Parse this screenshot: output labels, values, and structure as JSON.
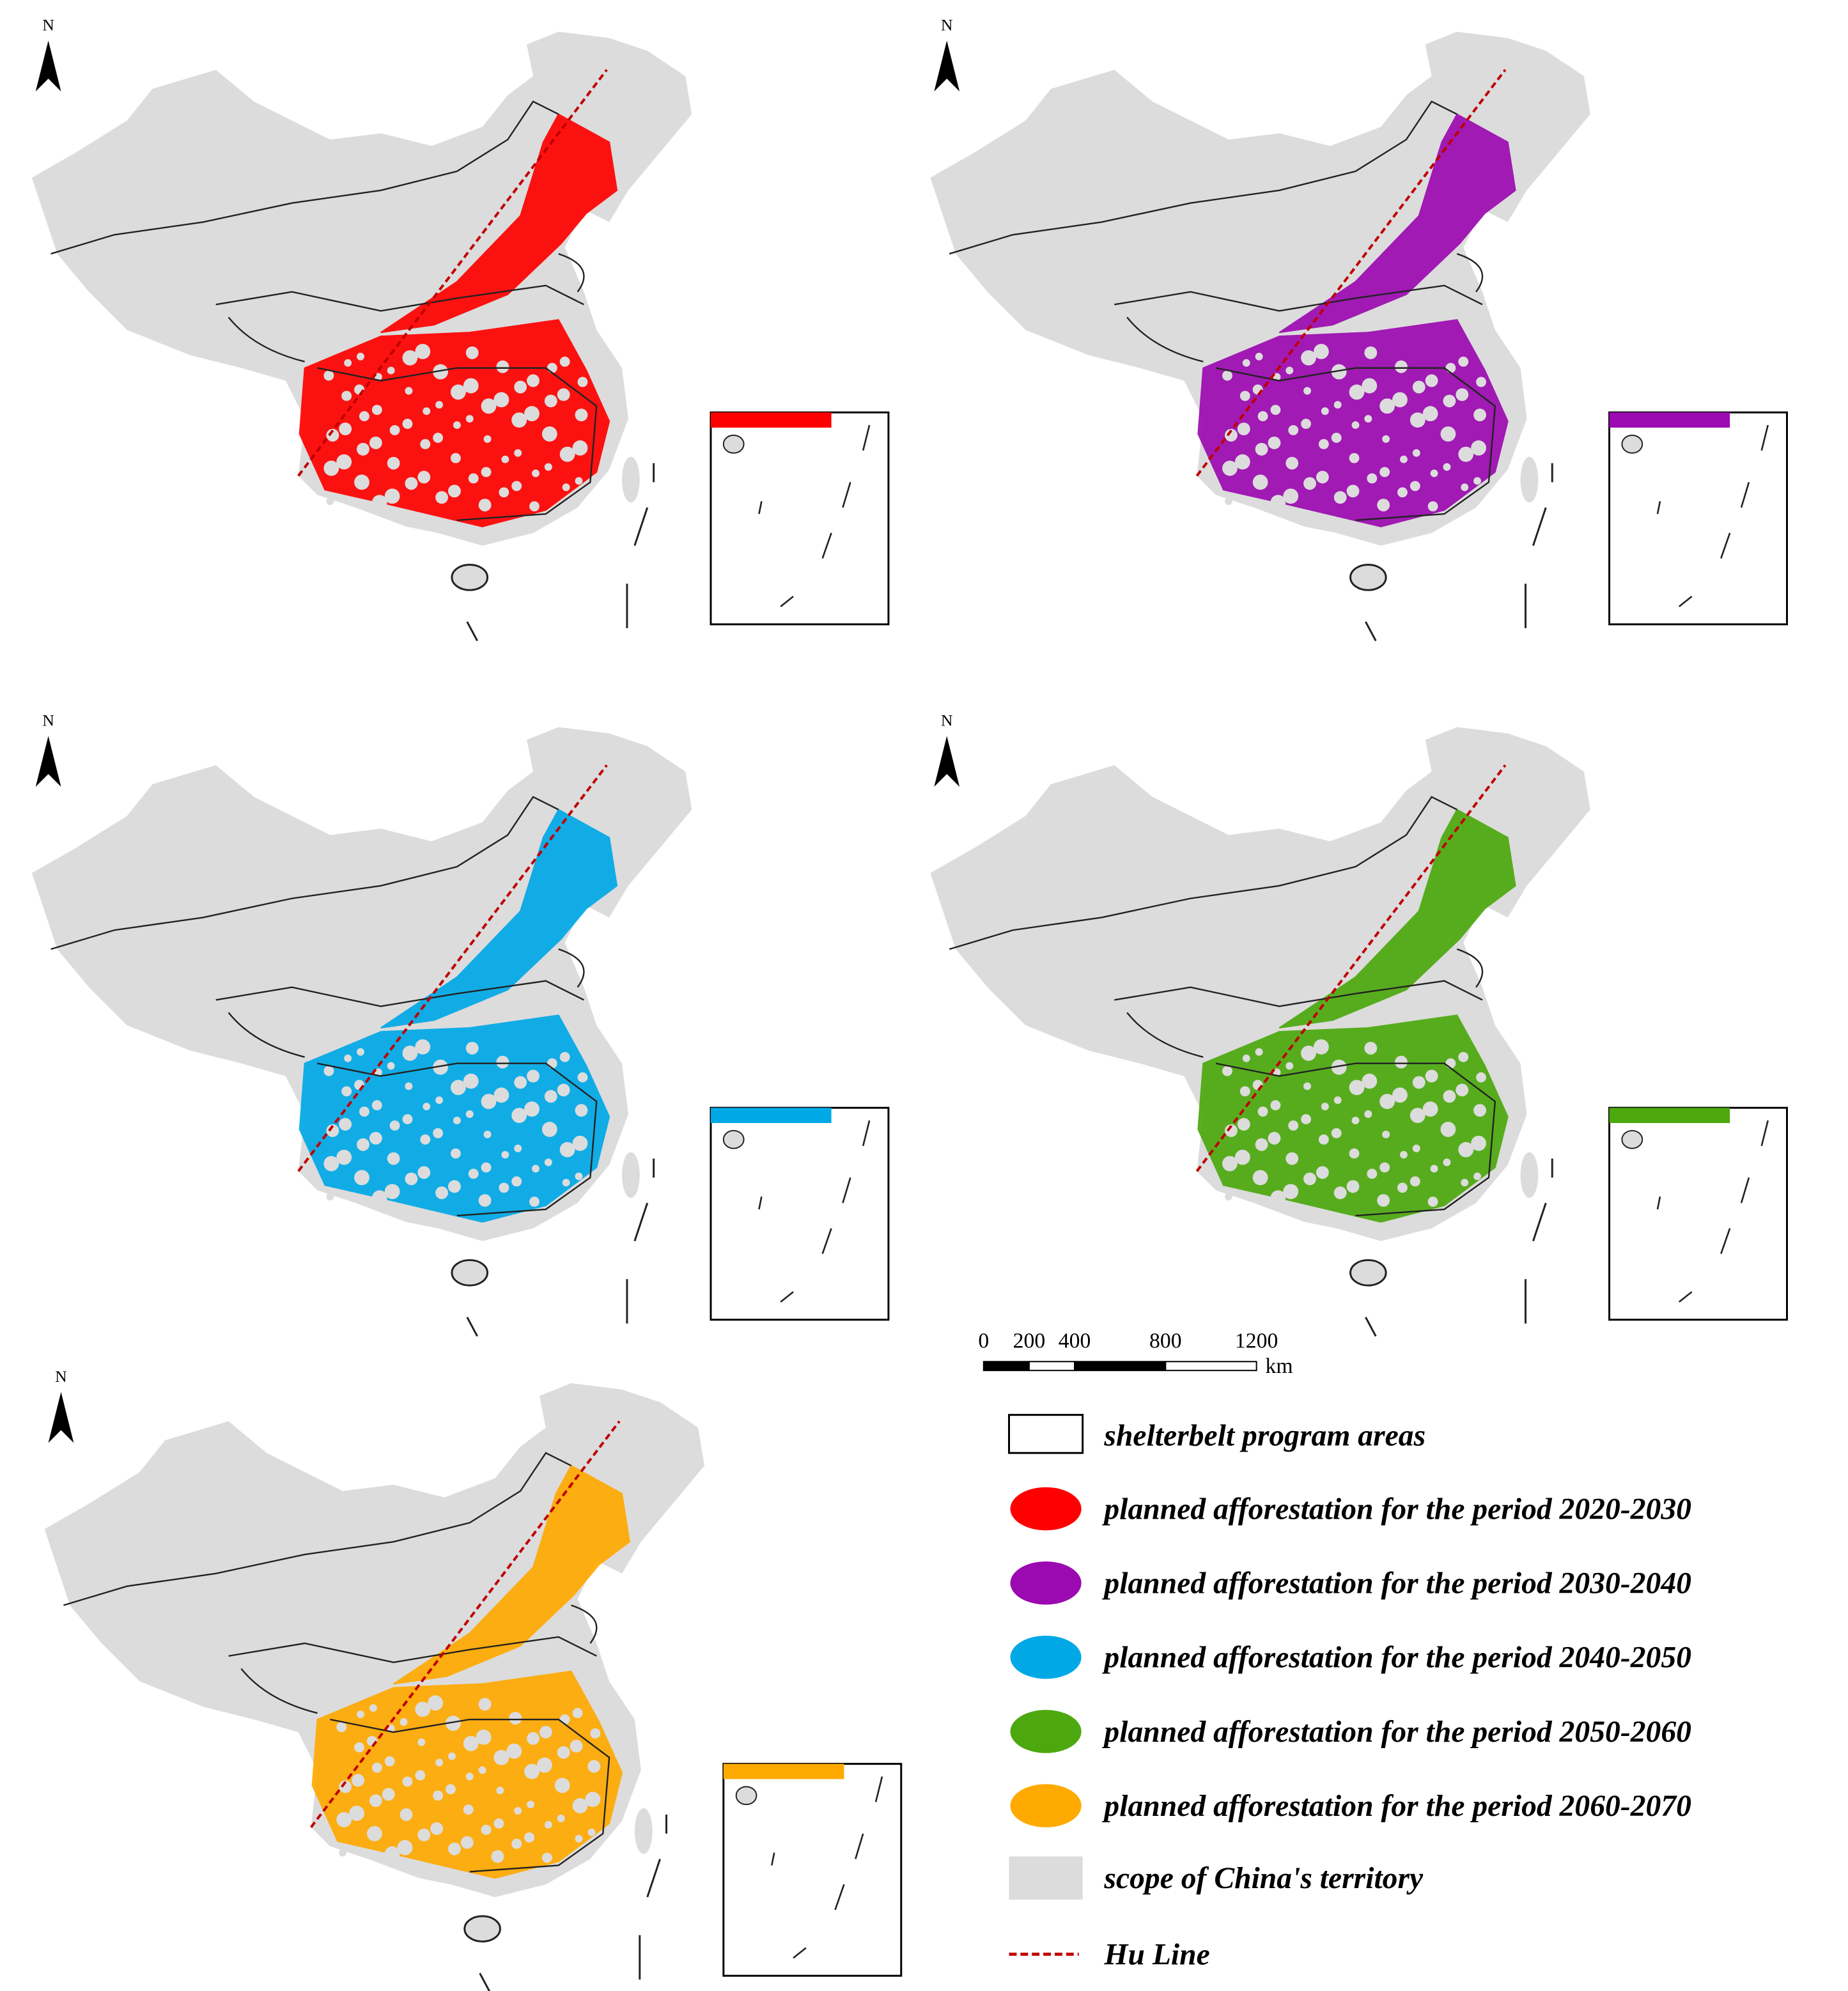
{
  "north_label": "N",
  "scale_bar": {
    "ticks": [
      0,
      200,
      400,
      800,
      1200
    ],
    "unit": "km"
  },
  "legend": {
    "boundary": "shelterbelt program areas",
    "periods": [
      {
        "label": "planned afforestation for the period 2020-2030",
        "color": "#ff0000"
      },
      {
        "label": "planned afforestation for the period 2030-2040",
        "color": "#9b0ab0"
      },
      {
        "label": "planned afforestation for the period 2040-2050",
        "color": "#00a9e6"
      },
      {
        "label": "planned afforestation for the period 2050-2060",
        "color": "#4ca80e"
      },
      {
        "label": "planned afforestation for the period 2060-2070",
        "color": "#ffaa00"
      }
    ],
    "territory": {
      "label": "scope of China's territory",
      "color": "#dcdcdc"
    },
    "hu_line": {
      "label": "Hu Line",
      "color": "#c00000"
    }
  }
}
